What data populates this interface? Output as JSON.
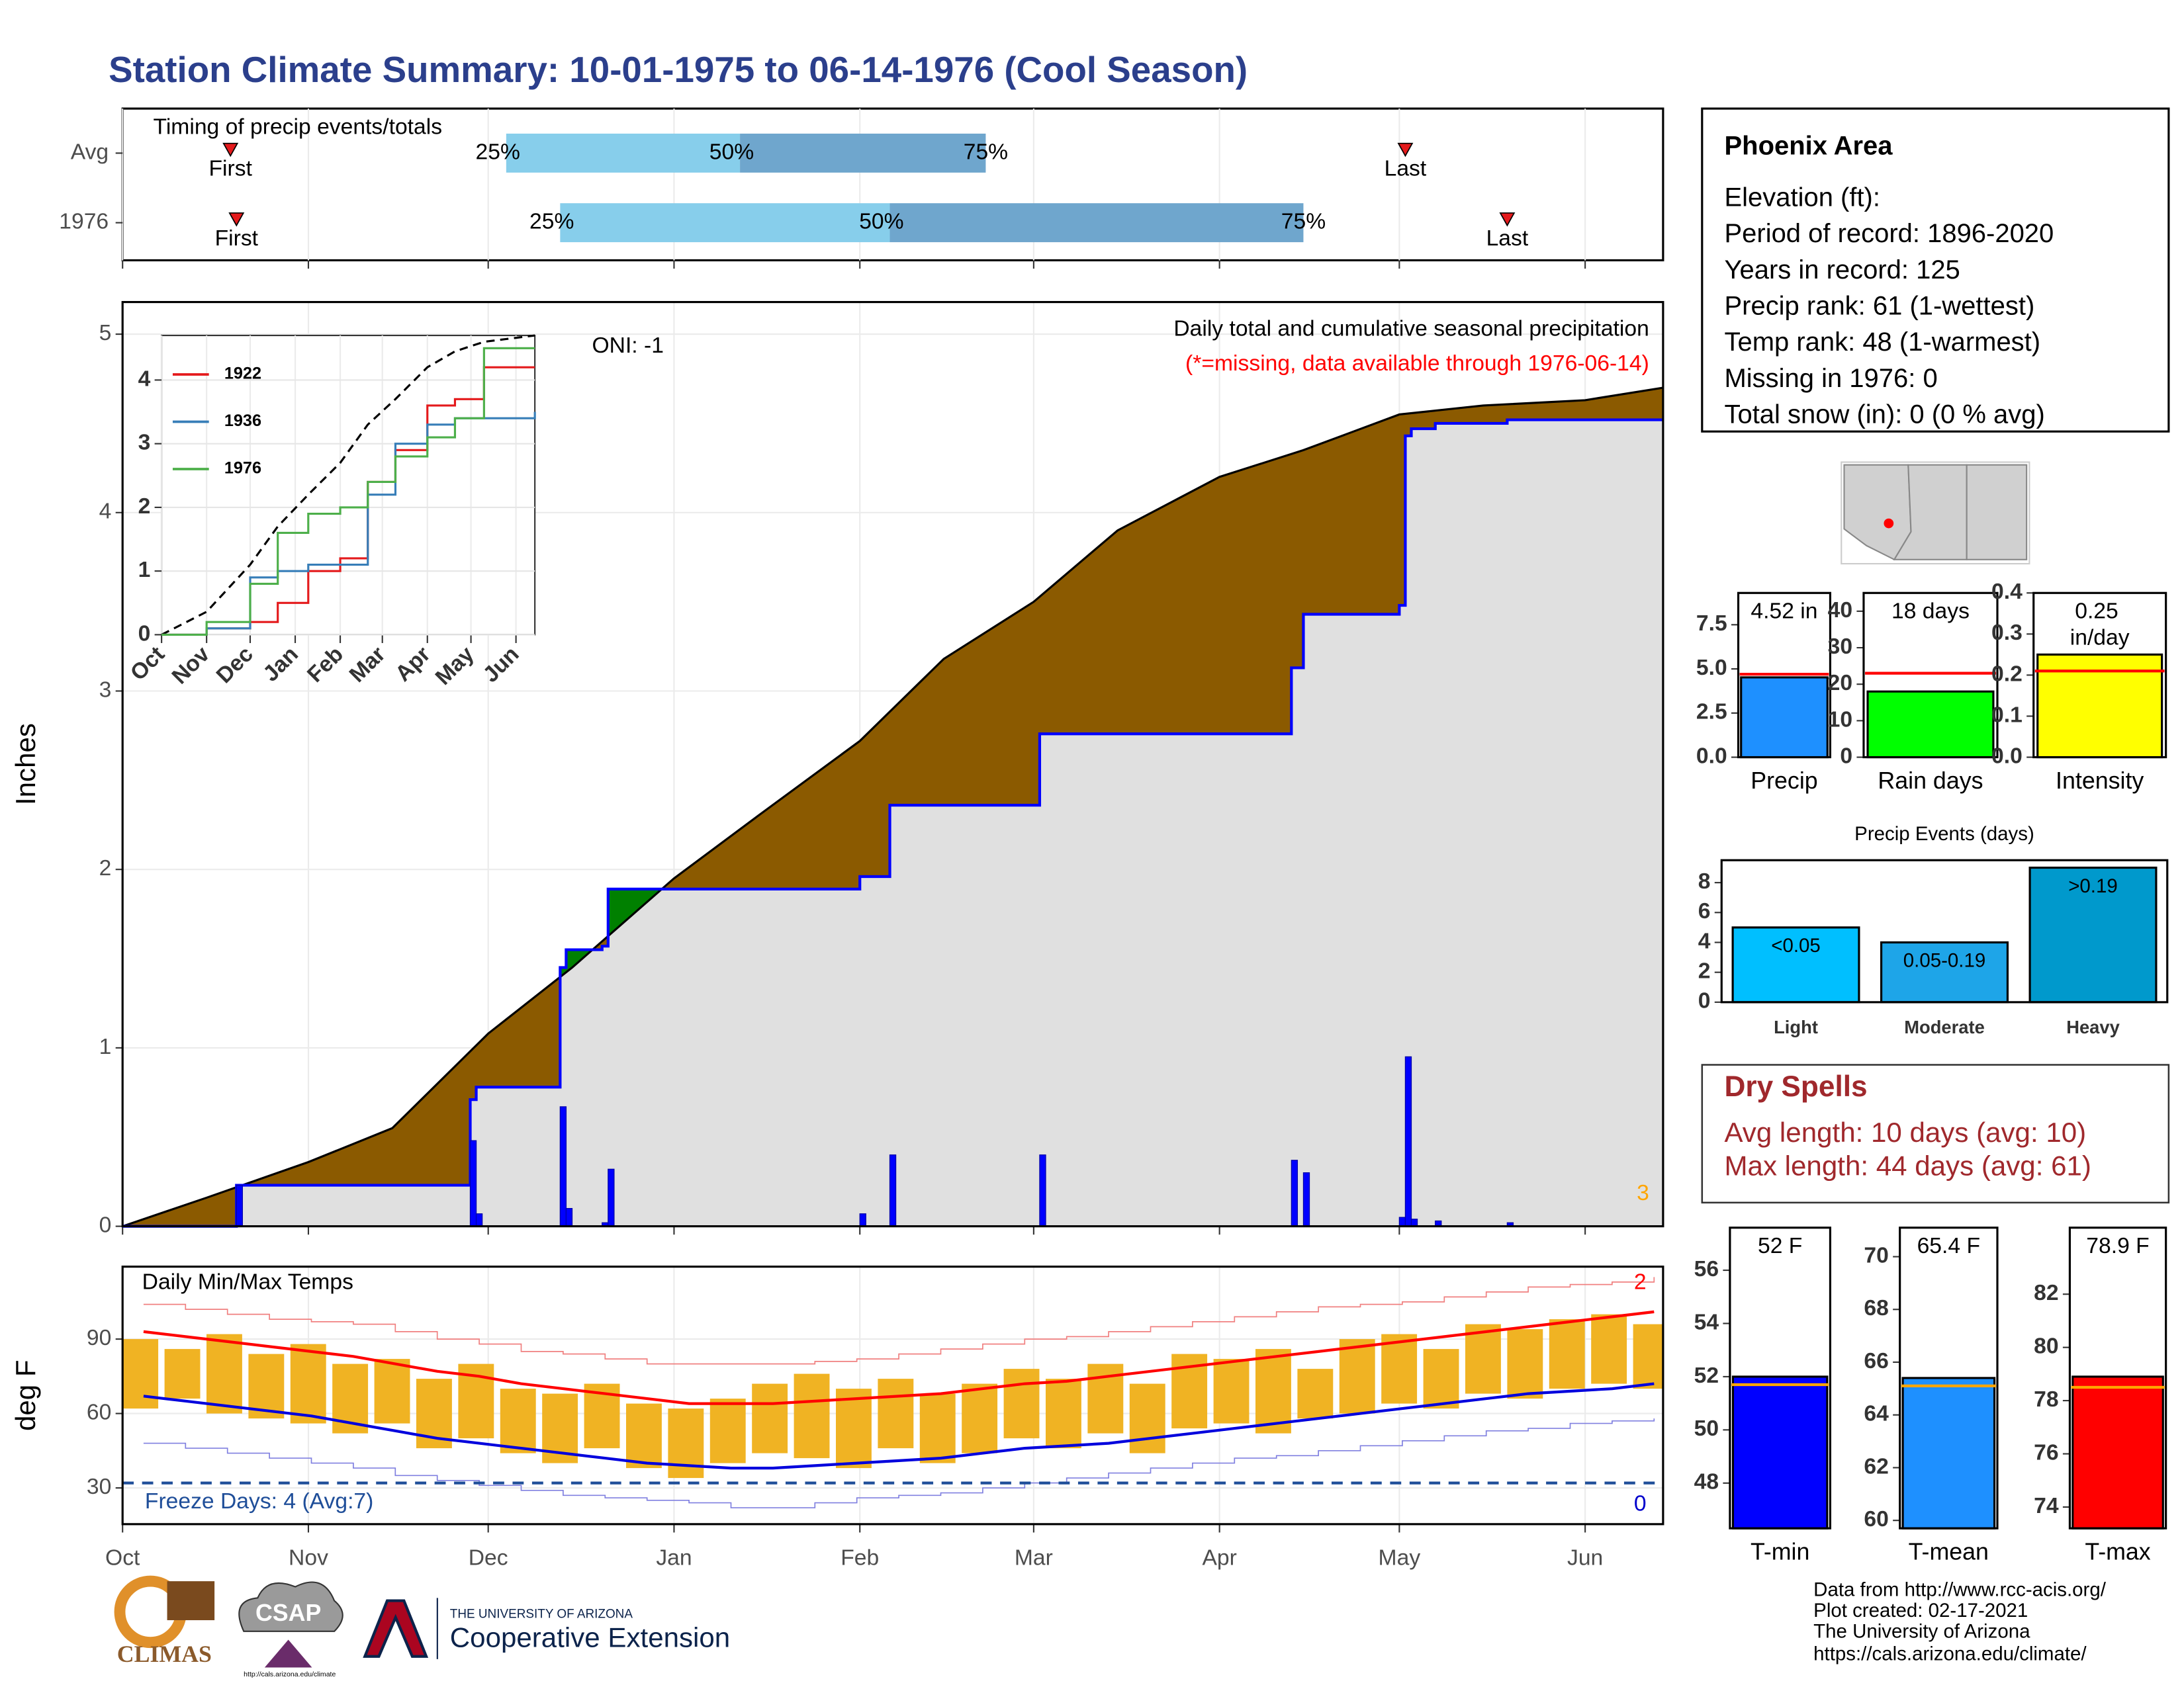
{
  "title": "Station Climate Summary: 10-01-1975 to 06-14-1976 (Cool Season)",
  "info": {
    "title": "Phoenix Area",
    "lines": [
      "Elevation (ft):",
      "Period of record: 1896-2020",
      "Years in record: 125",
      "Precip rank: 61 (1-wettest)",
      "Temp rank: 48 (1-warmest)",
      "Missing in 1976: 0",
      "Total snow (in): 0 (0 % avg)"
    ]
  },
  "dry_spells": {
    "title": "Dry Spells",
    "lines": [
      "Avg length: 10 days (avg: 10)",
      "Max length: 44 days (avg: 61)"
    ]
  },
  "footer": [
    "Data from http://www.rcc-acis.org/",
    "Plot created: 02-17-2021",
    "The University of Arizona",
    "https://cals.arizona.edu/climate/"
  ],
  "logos": {
    "climas": "CLIMAS",
    "csap": "CSAP",
    "csap_url": "http://cals.arizona.edu/climate",
    "ua_line": "THE UNIVERSITY OF ARIZONA",
    "ua_name": "Cooperative Extension"
  },
  "chart_data": [
    {
      "type": "timeline",
      "title": "Timing of precip events/totals",
      "labels": {
        "first": "First",
        "q25": "25%",
        "q50": "50%",
        "q75": "75%",
        "last": "Last"
      },
      "rows": [
        {
          "name": "Avg",
          "first": "1975-10-19",
          "q25": "1975-12-04",
          "q50": "1976-01-12",
          "q75": "1976-02-22",
          "last": "1976-05-02"
        },
        {
          "name": "1976",
          "first": "1975-10-20",
          "q25": "1975-12-13",
          "q50": "1976-02-06",
          "q75": "1976-04-15",
          "last": "1976-05-19"
        }
      ],
      "colors": [
        "#87ceeb",
        "#6fa6cd"
      ],
      "marker_color": "#e41a1c",
      "xlim": [
        "1975-10-01",
        "1976-06-14"
      ],
      "xticks": [
        "1975-10-01",
        "1975-11-01",
        "1975-12-01",
        "1976-01-01",
        "1976-02-01",
        "1976-03-01",
        "1976-04-01",
        "1976-05-01",
        "1976-06-01"
      ]
    },
    {
      "type": "cumulative",
      "title": "Daily total and cumulative seasonal precipitation",
      "subtitle": "(*=missing, data available through 1976-06-14)",
      "annotation": "ONI: -1",
      "count_label": "3",
      "ylabel": "Inches",
      "average": {
        "color": "#000000",
        "x": [
          "1975-10-01",
          "1975-10-15",
          "1975-11-01",
          "1975-11-15",
          "1975-12-01",
          "1975-12-15",
          "1976-01-01",
          "1976-01-15",
          "1976-02-01",
          "1976-02-15",
          "1976-03-01",
          "1976-03-15",
          "1976-04-01",
          "1976-04-15",
          "1976-05-01",
          "1976-05-15",
          "1976-06-01",
          "1976-06-14"
        ],
        "values": [
          0,
          0.16,
          0.36,
          0.55,
          1.08,
          1.45,
          1.95,
          2.3,
          2.72,
          3.18,
          3.5,
          3.9,
          4.2,
          4.35,
          4.55,
          4.6,
          4.63,
          4.7
        ]
      },
      "events": {
        "color": "#0000ff",
        "x": [
          "1975-10-20",
          "1975-11-28",
          "1975-11-29",
          "1975-12-13",
          "1975-12-14",
          "1975-12-20",
          "1975-12-21",
          "1976-02-01",
          "1976-02-06",
          "1976-03-02",
          "1976-04-13",
          "1976-04-15",
          "1976-05-01",
          "1976-05-02",
          "1976-05-03",
          "1976-05-07",
          "1976-05-19"
        ],
        "values": [
          0.23,
          0.48,
          0.07,
          0.67,
          0.1,
          0.02,
          0.32,
          0.07,
          0.4,
          0.4,
          0.37,
          0.3,
          0.05,
          0.95,
          0.04,
          0.03,
          0.02
        ]
      },
      "below_color": "#8b5a00",
      "above_color": "#008000",
      "fill": "#e0e0e0",
      "xlim": [
        "1975-10-01",
        "1976-06-14"
      ],
      "xticks": [
        "1975-10-01",
        "1975-11-01",
        "1975-12-01",
        "1976-01-01",
        "1976-02-01",
        "1976-03-01",
        "1976-04-01",
        "1976-05-01",
        "1976-06-01"
      ],
      "ylim": [
        0,
        5.18
      ],
      "yticks": [
        0,
        1,
        2,
        3,
        4,
        5
      ],
      "grid": true
    },
    {
      "type": "line",
      "x": [
        "1975-10-01",
        "1975-11-01",
        "1975-12-01",
        "1975-12-20",
        "1976-01-10",
        "1976-02-01",
        "1976-02-20",
        "1976-03-10",
        "1976-04-01",
        "1976-04-20",
        "1976-05-10",
        "1976-06-14"
      ],
      "series": [
        {
          "name": "1922",
          "color": "#e41a1c",
          "values": [
            0,
            0.1,
            0.2,
            0.5,
            1.0,
            1.2,
            2.4,
            2.9,
            3.6,
            3.7,
            4.2,
            4.2
          ]
        },
        {
          "name": "1936",
          "color": "#377eb8",
          "values": [
            0,
            0.1,
            0.9,
            1.0,
            1.1,
            1.1,
            2.2,
            3.0,
            3.3,
            3.4,
            3.4,
            3.5
          ]
        },
        {
          "name": "1976",
          "color": "#4daf4a",
          "values": [
            0,
            0.2,
            0.8,
            1.6,
            1.9,
            2.0,
            2.4,
            2.8,
            3.1,
            3.4,
            4.5,
            4.5
          ]
        }
      ],
      "average": {
        "color": "#000000",
        "values": [
          0,
          0.36,
          1.1,
          1.7,
          2.2,
          2.7,
          3.3,
          3.7,
          4.2,
          4.45,
          4.6,
          4.7
        ]
      },
      "xlim": [
        "1975-10-01",
        "1976-06-14"
      ],
      "xticks": [
        {
          "value": "1975-10-01",
          "label": "Oct"
        },
        {
          "value": "1975-11-01",
          "label": "Nov"
        },
        {
          "value": "1975-12-01",
          "label": "Dec"
        },
        {
          "value": "1976-01-01",
          "label": "Jan"
        },
        {
          "value": "1976-02-01",
          "label": "Feb"
        },
        {
          "value": "1976-03-01",
          "label": "Mar"
        },
        {
          "value": "1976-04-01",
          "label": "Apr"
        },
        {
          "value": "1976-05-01",
          "label": "May"
        },
        {
          "value": "1976-06-01",
          "label": "Jun"
        }
      ],
      "ylim": [
        0,
        4.7
      ],
      "yticks": [
        0,
        1,
        2,
        3,
        4
      ],
      "grid": true
    },
    {
      "type": "temperature",
      "title": "Daily Min/Max Temps",
      "ylabel": "deg F",
      "x": [
        "1975-10-01",
        "1975-10-08",
        "1975-10-15",
        "1975-10-22",
        "1975-10-29",
        "1975-11-05",
        "1975-11-12",
        "1975-11-19",
        "1975-11-26",
        "1975-12-03",
        "1975-12-10",
        "1975-12-17",
        "1975-12-24",
        "1975-12-31",
        "1976-01-07",
        "1976-01-14",
        "1976-01-21",
        "1976-01-28",
        "1976-02-04",
        "1976-02-11",
        "1976-02-18",
        "1976-02-25",
        "1976-03-03",
        "1976-03-10",
        "1976-03-17",
        "1976-03-24",
        "1976-03-31",
        "1976-04-07",
        "1976-04-14",
        "1976-04-21",
        "1976-04-28",
        "1976-05-05",
        "1976-05-12",
        "1976-05-19",
        "1976-05-26",
        "1976-06-02",
        "1976-06-09"
      ],
      "max": {
        "color": "#f0b323",
        "values": [
          90,
          86,
          92,
          84,
          88,
          80,
          82,
          74,
          80,
          70,
          68,
          72,
          64,
          62,
          66,
          72,
          76,
          70,
          74,
          68,
          72,
          78,
          74,
          80,
          72,
          84,
          82,
          86,
          78,
          90,
          92,
          86,
          96,
          94,
          98,
          100,
          96
        ]
      },
      "min": {
        "color": "#f0b323",
        "values": [
          62,
          66,
          60,
          58,
          56,
          52,
          56,
          46,
          50,
          44,
          40,
          46,
          38,
          34,
          40,
          44,
          42,
          38,
          46,
          40,
          44,
          50,
          46,
          52,
          44,
          54,
          56,
          52,
          58,
          60,
          64,
          62,
          68,
          66,
          70,
          72,
          70
        ]
      },
      "avg_max": {
        "color": "#ff0000",
        "values": [
          93,
          91,
          89,
          87,
          85,
          83,
          80,
          77,
          75,
          72,
          70,
          68,
          66,
          64,
          64,
          64,
          65,
          66,
          67,
          68,
          70,
          72,
          73,
          75,
          77,
          79,
          81,
          83,
          85,
          87,
          89,
          91,
          93,
          95,
          97,
          99,
          101
        ]
      },
      "avg_min": {
        "color": "#0000dd",
        "values": [
          67,
          65,
          63,
          61,
          59,
          56,
          53,
          50,
          48,
          46,
          44,
          42,
          40,
          39,
          38,
          38,
          39,
          40,
          41,
          42,
          44,
          46,
          47,
          48,
          50,
          52,
          54,
          56,
          58,
          60,
          62,
          64,
          66,
          68,
          69,
          70,
          72
        ]
      },
      "record_max": {
        "color": "#f08080",
        "values": [
          104,
          102,
          100,
          98,
          97,
          96,
          93,
          90,
          88,
          85,
          84,
          82,
          80,
          80,
          80,
          80,
          81,
          82,
          84,
          86,
          88,
          90,
          91,
          93,
          95,
          97,
          99,
          101,
          103,
          104,
          105,
          107,
          109,
          111,
          112,
          113,
          115
        ]
      },
      "record_min": {
        "color": "#8080e0",
        "values": [
          48,
          46,
          44,
          42,
          40,
          38,
          35,
          33,
          31,
          29,
          27,
          26,
          25,
          24,
          22,
          22,
          24,
          26,
          27,
          28,
          30,
          32,
          34,
          36,
          38,
          40,
          42,
          43,
          45,
          47,
          49,
          51,
          53,
          54,
          56,
          57,
          58
        ]
      },
      "freeze": {
        "value": 32,
        "label": "Freeze Days: 4 (Avg:7)",
        "color": "#1f4e99"
      },
      "annotations": [
        {
          "text": "2",
          "color": "#ff0000"
        },
        {
          "text": "0",
          "color": "#0000cc"
        }
      ],
      "xlim": [
        "1975-10-01",
        "1976-06-14"
      ],
      "xticks": [
        {
          "value": "1975-10-01",
          "label": "Oct"
        },
        {
          "value": "1975-11-01",
          "label": "Nov"
        },
        {
          "value": "1975-12-01",
          "label": "Dec"
        },
        {
          "value": "1976-01-01",
          "label": "Jan"
        },
        {
          "value": "1976-02-01",
          "label": "Feb"
        },
        {
          "value": "1976-03-01",
          "label": "Mar"
        },
        {
          "value": "1976-04-01",
          "label": "Apr"
        },
        {
          "value": "1976-05-01",
          "label": "May"
        },
        {
          "value": "1976-06-01",
          "label": "Jun"
        }
      ],
      "ylim": [
        15.4,
        119.2
      ],
      "yticks": [
        30,
        60,
        90
      ],
      "grid": true
    },
    {
      "type": "bar",
      "categories": [
        "Precip"
      ],
      "values": [
        4.52
      ],
      "value_labels": [
        "4.52 in"
      ],
      "colors": [
        "#1e90ff"
      ],
      "average": 4.7,
      "average_color": "#ff0000",
      "ylim": [
        0,
        9.3
      ],
      "yticks": [
        {
          "value": 0,
          "label": "0.0"
        },
        {
          "value": 2.5,
          "label": "2.5"
        },
        {
          "value": 5,
          "label": "5.0"
        },
        {
          "value": 7.5,
          "label": "7.5"
        }
      ]
    },
    {
      "type": "bar",
      "categories": [
        "Rain days"
      ],
      "values": [
        18
      ],
      "value_labels": [
        "18 days"
      ],
      "colors": [
        "#00ff00"
      ],
      "average": 23,
      "average_color": "#ff0000",
      "ylim": [
        0,
        45
      ],
      "yticks": [
        0,
        10,
        20,
        30,
        40
      ]
    },
    {
      "type": "bar",
      "categories": [
        "Intensity"
      ],
      "values": [
        0.25
      ],
      "value_labels": [
        "0.25 in/day"
      ],
      "colors": [
        "#ffff00"
      ],
      "average": 0.21,
      "average_color": "#ff0000",
      "ylim": [
        0,
        0.4
      ],
      "yticks": [
        {
          "value": 0,
          "label": "0.0"
        },
        0.1,
        0.2,
        0.3,
        0.4
      ]
    },
    {
      "type": "bar",
      "title": "Precip Events (days)",
      "categories": [
        "Light",
        "Moderate",
        "Heavy"
      ],
      "bin_labels": [
        "<0.05",
        "0.05-0.19",
        ">0.19"
      ],
      "values": [
        5,
        4,
        9
      ],
      "colors": [
        "#00bfff",
        "#1ea5e8",
        "#0099cc"
      ],
      "ylim": [
        0,
        9.5
      ],
      "yticks": [
        0,
        2,
        4,
        6,
        8
      ]
    },
    {
      "type": "bar",
      "categories": [
        "T-min"
      ],
      "values": [
        52
      ],
      "value_labels": [
        "52 F"
      ],
      "colors": [
        "#0000ff"
      ],
      "average": 51.7,
      "average_color": "#ffa500",
      "ylim": [
        46.3,
        57.6
      ],
      "yticks": [
        48,
        50,
        52,
        54,
        56
      ]
    },
    {
      "type": "bar",
      "categories": [
        "T-mean"
      ],
      "values": [
        65.4
      ],
      "value_labels": [
        "65.4 F"
      ],
      "colors": [
        "#1e90ff"
      ],
      "average": 65.1,
      "average_color": "#ffa500",
      "ylim": [
        59.7,
        71.1
      ],
      "yticks": [
        60,
        62,
        64,
        66,
        68,
        70
      ]
    },
    {
      "type": "bar",
      "categories": [
        "T-max"
      ],
      "values": [
        78.9
      ],
      "value_labels": [
        "78.9 F"
      ],
      "colors": [
        "#ff0000"
      ],
      "average": 78.5,
      "average_color": "#ffa500",
      "ylim": [
        73.2,
        84.5
      ],
      "yticks": [
        74,
        76,
        78,
        80,
        82
      ]
    }
  ]
}
